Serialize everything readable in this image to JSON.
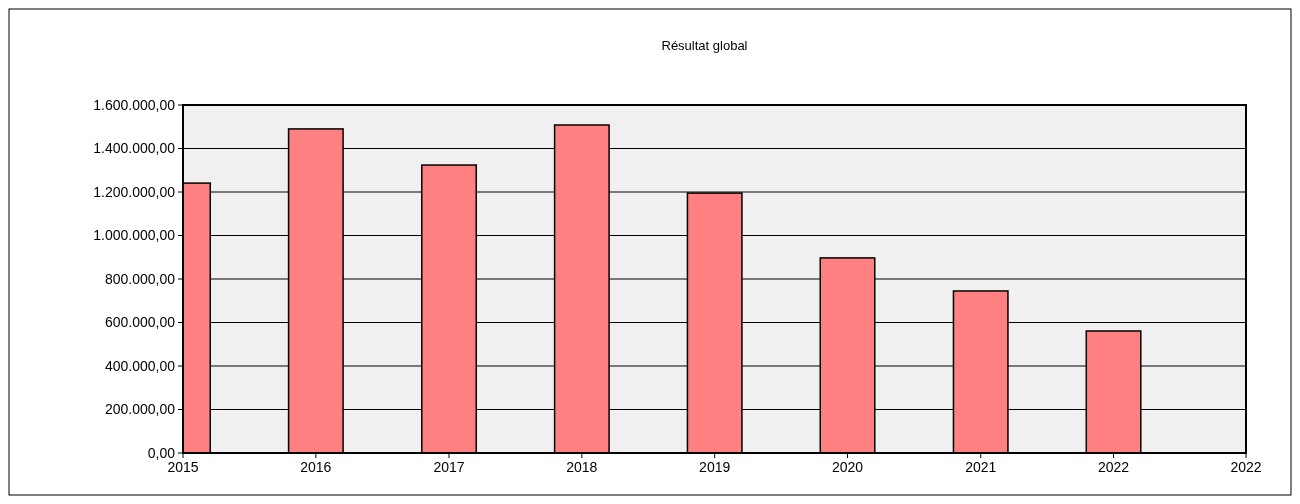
{
  "chart_data": {
    "type": "bar",
    "title": "Résultat global",
    "x": [
      "2015-01-01",
      "2016-01-01",
      "2017-01-01",
      "2018-01-01",
      "2019-01-01",
      "2020-01-01",
      "2021-01-01",
      "2022-01-01"
    ],
    "series": [
      {
        "color": "#ff8080",
        "values": [
          1241000,
          1490000,
          1324000,
          1508000,
          1195000,
          897000,
          745000,
          561000
        ]
      }
    ],
    "xlim": [
      "2015-01-01",
      "2022-12-31"
    ],
    "xticks": [
      {
        "value": "2015-01-01",
        "label": "2015"
      },
      {
        "value": "2016-01-01",
        "label": "2016"
      },
      {
        "value": "2017-01-01",
        "label": "2017"
      },
      {
        "value": "2018-01-01",
        "label": "2018"
      },
      {
        "value": "2019-01-01",
        "label": "2019"
      },
      {
        "value": "2020-01-01",
        "label": "2020"
      },
      {
        "value": "2021-01-01",
        "label": "2021"
      },
      {
        "value": "2022-01-01",
        "label": "2022"
      },
      {
        "value": "2022-12-31",
        "label": "2022"
      }
    ],
    "ylim": [
      0,
      1600000
    ],
    "yticks": [
      {
        "value": 0,
        "label": "0,00"
      },
      {
        "value": 200000,
        "label": "200.000,00"
      },
      {
        "value": 400000,
        "label": "400.000,00"
      },
      {
        "value": 600000,
        "label": "600.000,00"
      },
      {
        "value": 800000,
        "label": "800.000,00"
      },
      {
        "value": 1000000,
        "label": "1.000.000,00"
      },
      {
        "value": 1200000,
        "label": "1.200.000,00"
      },
      {
        "value": 1400000,
        "label": "1.400.000,00"
      },
      {
        "value": 1600000,
        "label": "1.600.000,00"
      }
    ],
    "grid": "y"
  }
}
